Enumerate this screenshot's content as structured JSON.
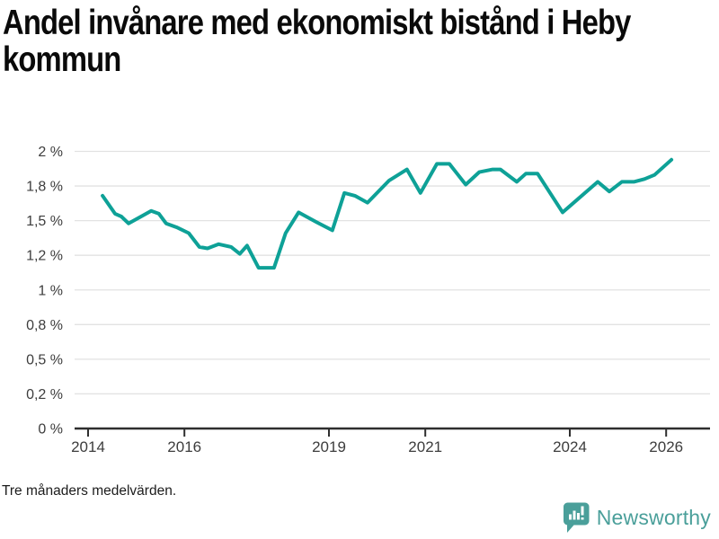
{
  "header": {
    "title_line1": "Andel invånare med ekonomiskt bistånd i Heby",
    "title_line2": "kommun"
  },
  "footnote": "Tre månaders medelvärden.",
  "branding": {
    "name": "Newsworthy"
  },
  "colors": {
    "line": "#0EA197",
    "grid": "#E2E2E2",
    "axis": "#2E2E2E",
    "tick_text": "#3D3D3D",
    "title_text": "#0A0A0A",
    "logo_teal": "#4A9F9A"
  },
  "chart_data": {
    "type": "line",
    "title": "Andel invånare med ekonomiskt bistånd i Heby kommun",
    "unit": "%",
    "note": "Tre månaders medelvärden.",
    "grid": true,
    "legend": "none",
    "y_axis": {
      "range": [
        0,
        2
      ],
      "tick_positions": [
        2,
        1.75,
        1.5,
        1.25,
        1,
        0.75,
        0.5,
        0.25,
        0
      ],
      "tick_labels": [
        "2 %",
        "1,8 %",
        "1,5 %",
        "1,2 %",
        "1 %",
        "0,8 %",
        "0,5 %",
        "0,2 %",
        "0 %"
      ]
    },
    "x_axis": {
      "tick_years": [
        2014,
        2016,
        2019,
        2021,
        2024,
        2026
      ],
      "tick_labels": [
        "2014",
        "2016",
        "2019",
        "2021",
        "2024",
        "2026"
      ]
    },
    "series": [
      {
        "name": "Andel invånare med ekonomiskt bistånd",
        "points": [
          [
            2014.3,
            1.68
          ],
          [
            2014.56,
            1.55
          ],
          [
            2014.69,
            1.53
          ],
          [
            2014.84,
            1.48
          ],
          [
            2015.1,
            1.53
          ],
          [
            2015.31,
            1.57
          ],
          [
            2015.47,
            1.55
          ],
          [
            2015.62,
            1.48
          ],
          [
            2015.85,
            1.45
          ],
          [
            2016.09,
            1.41
          ],
          [
            2016.31,
            1.31
          ],
          [
            2016.48,
            1.3
          ],
          [
            2016.71,
            1.33
          ],
          [
            2016.97,
            1.31
          ],
          [
            2017.15,
            1.26
          ],
          [
            2017.3,
            1.32
          ],
          [
            2017.54,
            1.16
          ],
          [
            2017.86,
            1.16
          ],
          [
            2018.1,
            1.41
          ],
          [
            2018.37,
            1.56
          ],
          [
            2018.74,
            1.49
          ],
          [
            2019.07,
            1.43
          ],
          [
            2019.32,
            1.7
          ],
          [
            2019.54,
            1.68
          ],
          [
            2019.8,
            1.63
          ],
          [
            2020.25,
            1.79
          ],
          [
            2020.62,
            1.87
          ],
          [
            2020.9,
            1.7
          ],
          [
            2021.24,
            1.91
          ],
          [
            2021.5,
            1.91
          ],
          [
            2021.84,
            1.76
          ],
          [
            2022.12,
            1.85
          ],
          [
            2022.4,
            1.87
          ],
          [
            2022.56,
            1.87
          ],
          [
            2022.9,
            1.78
          ],
          [
            2023.09,
            1.84
          ],
          [
            2023.33,
            1.84
          ],
          [
            2023.85,
            1.56
          ],
          [
            2024.58,
            1.78
          ],
          [
            2024.82,
            1.71
          ],
          [
            2025.08,
            1.78
          ],
          [
            2025.33,
            1.78
          ],
          [
            2025.55,
            1.8
          ],
          [
            2025.76,
            1.83
          ],
          [
            2026.11,
            1.94
          ]
        ]
      }
    ]
  }
}
